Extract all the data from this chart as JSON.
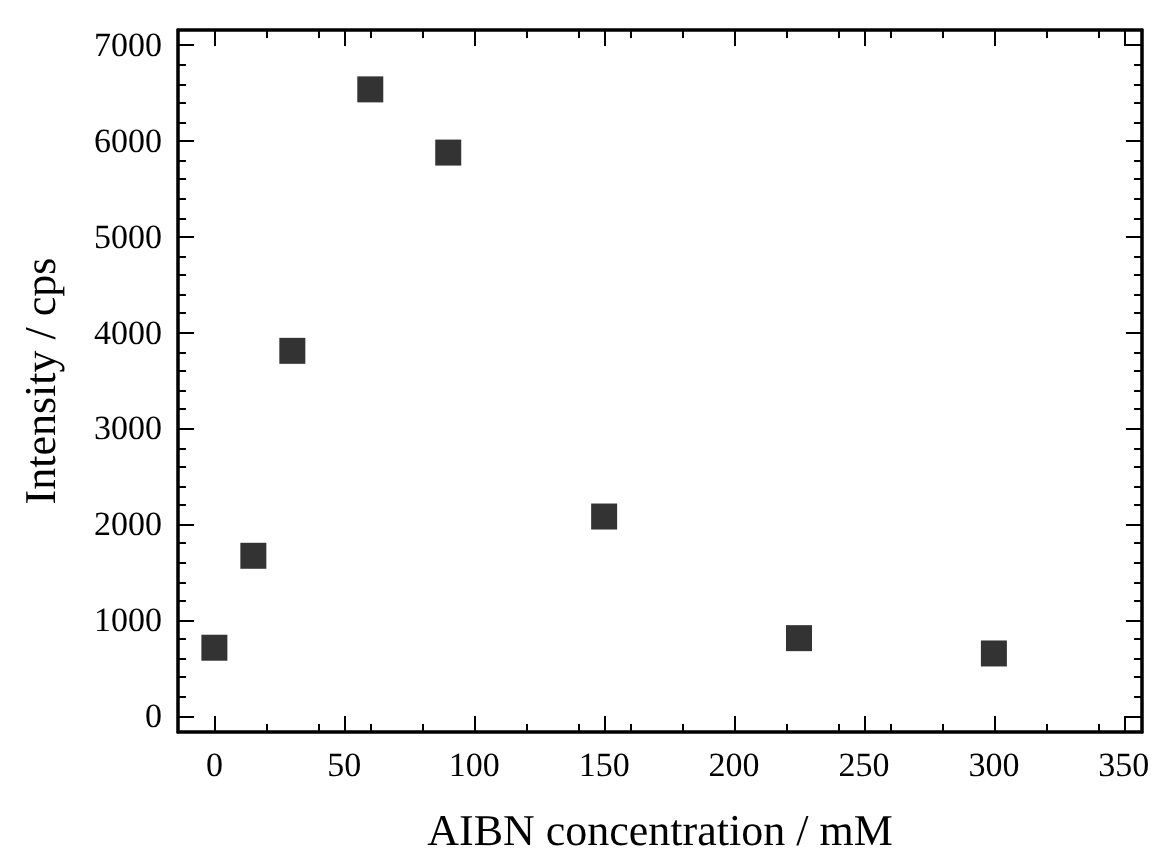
{
  "chart_data": {
    "type": "scatter",
    "xlabel": "AIBN concentration / mM",
    "ylabel": "Intensity / cps",
    "x": [
      0,
      15,
      30,
      60,
      90,
      150,
      225,
      300
    ],
    "values": [
      710,
      1670,
      3810,
      6540,
      5880,
      2080,
      810,
      650
    ],
    "color": "#000000",
    "marker": "square",
    "grid": false,
    "xlim": [
      -14,
      357
    ],
    "xticks": [
      0,
      50,
      100,
      150,
      200,
      250,
      300,
      350
    ],
    "ylim": [
      -170,
      7160
    ],
    "yticks": [
      0,
      1000,
      2000,
      3000,
      4000,
      5000,
      6000,
      7000
    ]
  }
}
